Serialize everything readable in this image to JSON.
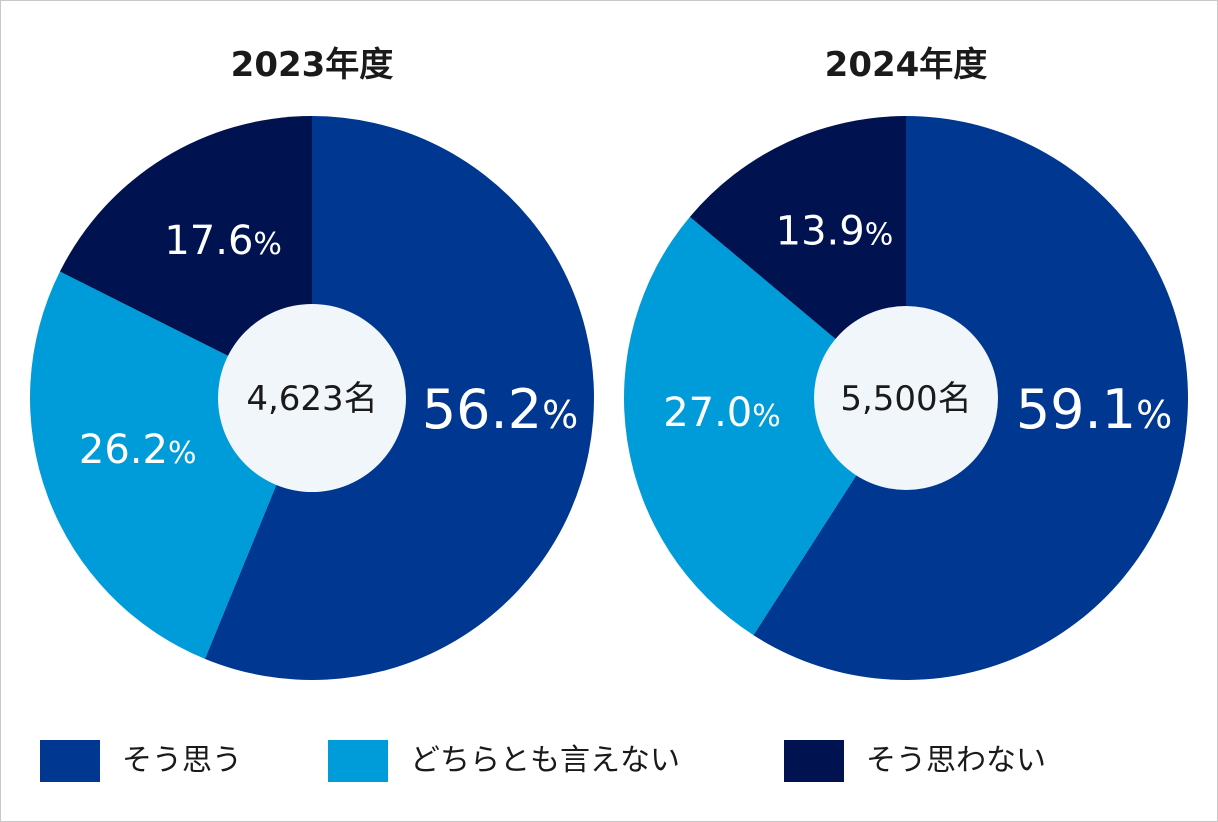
{
  "chart_data": [
    {
      "type": "pie",
      "title": "2023年度",
      "center_label": "4,623名",
      "categories": [
        "そう思う",
        "どちらとも言えない",
        "そう思わない"
      ],
      "values": [
        56.2,
        26.2,
        17.6
      ],
      "value_labels": [
        "56.2",
        "26.2",
        "17.6"
      ],
      "unit": "%",
      "colors": [
        "#003790",
        "#009bd9",
        "#00124f"
      ],
      "donut": true,
      "start_angle_deg": 0,
      "direction": "clockwise"
    },
    {
      "type": "pie",
      "title": "2024年度",
      "center_label": "5,500名",
      "categories": [
        "そう思う",
        "どちらとも言えない",
        "そう思わない"
      ],
      "values": [
        59.1,
        27.0,
        13.9
      ],
      "value_labels": [
        "59.1",
        "27.0",
        "13.9"
      ],
      "unit": "%",
      "colors": [
        "#003790",
        "#009bd9",
        "#00124f"
      ],
      "donut": true,
      "start_angle_deg": 0,
      "direction": "clockwise"
    }
  ],
  "legend": {
    "placement": "bottom",
    "items": [
      {
        "label": "そう思う",
        "color": "#003790"
      },
      {
        "label": "どちらとも言えない",
        "color": "#009bd9"
      },
      {
        "label": "そう思わない",
        "color": "#00124f"
      }
    ]
  },
  "colors": {
    "center_fill": "#f1f6fb",
    "label_text": "#ffffff",
    "dark_text": "#1a1a1a",
    "border": "#c8c8c8"
  }
}
